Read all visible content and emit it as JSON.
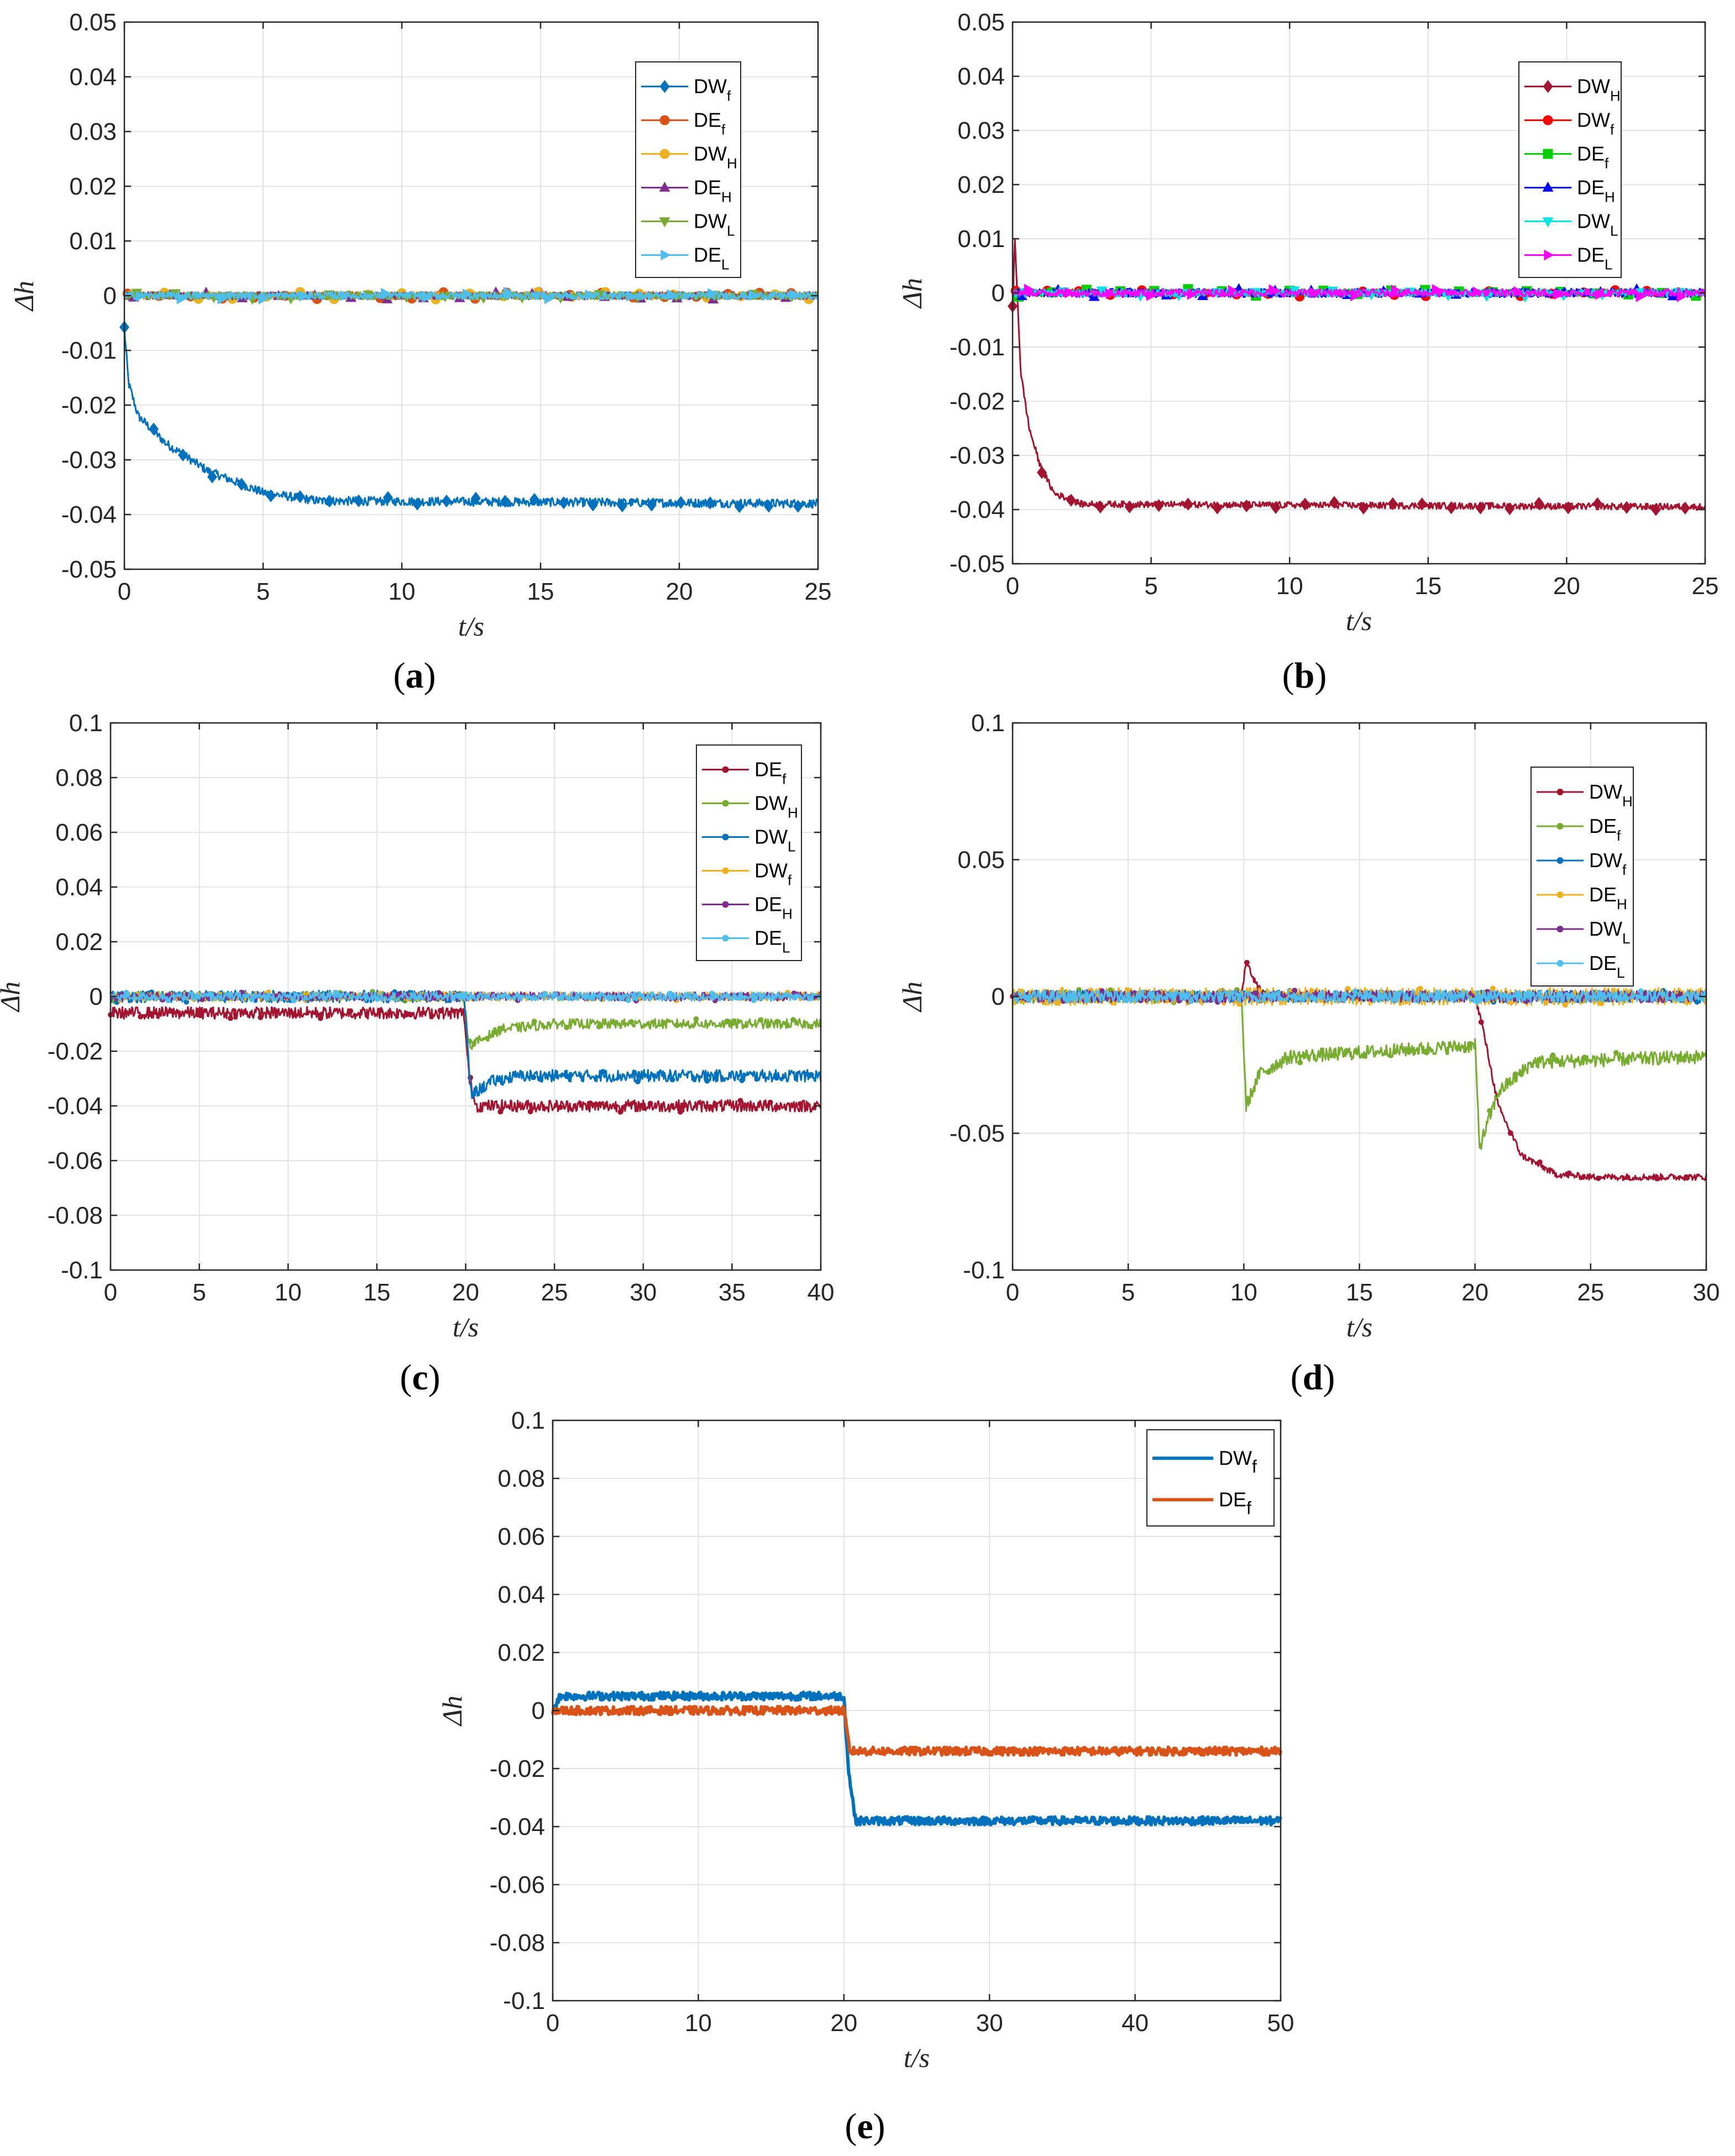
{
  "figure_labels": {
    "a": "a",
    "b": "b",
    "c": "c",
    "d": "d",
    "e": "e"
  },
  "chart_data": [
    {
      "id": "a",
      "type": "line",
      "xlim": [
        0,
        25
      ],
      "ylim": [
        -0.05,
        0.05
      ],
      "xticks": [
        0,
        5,
        10,
        15,
        20,
        25
      ],
      "yticks": [
        -0.05,
        -0.04,
        -0.03,
        -0.02,
        -0.01,
        0,
        0.01,
        0.02,
        0.03,
        0.04,
        0.05
      ],
      "ytick_labels": [
        "-0.05",
        "-0.04",
        "-0.03",
        "-0.02",
        "-0.01",
        "0",
        "0.01",
        "0.02",
        "0.03",
        "0.04",
        "0.05"
      ],
      "xlabel": "t/s",
      "ylabel": "Δh",
      "grid": true,
      "legend_position": "top-right",
      "series": [
        {
          "name": "DW",
          "sub": "f",
          "color": "#0072BD",
          "marker": "diamond",
          "profile": [
            [
              0,
              -0.006
            ],
            [
              0.15,
              -0.016
            ],
            [
              0.5,
              -0.022
            ],
            [
              1.5,
              -0.027
            ],
            [
              3,
              -0.032
            ],
            [
              5,
              -0.036
            ],
            [
              7,
              -0.0375
            ],
            [
              25,
              -0.038
            ]
          ],
          "noise": 0.0008
        },
        {
          "name": "DE",
          "sub": "f",
          "color": "#D95319",
          "marker": "circle",
          "profile": [
            [
              0,
              0
            ],
            [
              25,
              0
            ]
          ],
          "noise": 0.0007
        },
        {
          "name": "DW",
          "sub": "H",
          "color": "#EDB120",
          "marker": "circle",
          "profile": [
            [
              0,
              0
            ],
            [
              25,
              0
            ]
          ],
          "noise": 0.0007
        },
        {
          "name": "DE",
          "sub": "H",
          "color": "#7E2F8E",
          "marker": "triangle-up",
          "profile": [
            [
              0,
              0
            ],
            [
              25,
              0
            ]
          ],
          "noise": 0.0007
        },
        {
          "name": "DW",
          "sub": "L",
          "color": "#77AC30",
          "marker": "triangle-down",
          "profile": [
            [
              0,
              0
            ],
            [
              25,
              0
            ]
          ],
          "noise": 0.0007
        },
        {
          "name": "DE",
          "sub": "L",
          "color": "#4DBEEE",
          "marker": "triangle-right",
          "profile": [
            [
              0,
              0
            ],
            [
              25,
              0
            ]
          ],
          "noise": 0.0007
        }
      ]
    },
    {
      "id": "b",
      "type": "line",
      "xlim": [
        0,
        25
      ],
      "ylim": [
        -0.05,
        0.05
      ],
      "xticks": [
        0,
        5,
        10,
        15,
        20,
        25
      ],
      "yticks": [
        -0.05,
        -0.04,
        -0.03,
        -0.02,
        -0.01,
        0,
        0.01,
        0.02,
        0.03,
        0.04,
        0.05
      ],
      "ytick_labels": [
        "-0.05",
        "-0.04",
        "-0.03",
        "-0.02",
        "-0.01",
        "0",
        "0.01",
        "0.02",
        "0.03",
        "0.04",
        "0.05"
      ],
      "xlabel": "t/s",
      "ylabel": "Δh",
      "grid": true,
      "legend_position": "top-right",
      "series": [
        {
          "name": "DW",
          "sub": "H",
          "color": "#A2142F",
          "marker": "diamond",
          "profile": [
            [
              0,
              -0.003
            ],
            [
              0.08,
              0.01
            ],
            [
              0.3,
              -0.015
            ],
            [
              0.6,
              -0.025
            ],
            [
              1,
              -0.032
            ],
            [
              1.5,
              -0.037
            ],
            [
              2.5,
              -0.039
            ],
            [
              25,
              -0.0395
            ]
          ],
          "noise": 0.0006
        },
        {
          "name": "DW",
          "sub": "f",
          "color": "#FF0000",
          "marker": "circle",
          "profile": [
            [
              0,
              0
            ],
            [
              25,
              0
            ]
          ],
          "noise": 0.0007
        },
        {
          "name": "DE",
          "sub": "f",
          "color": "#00D000",
          "marker": "square",
          "profile": [
            [
              0,
              0
            ],
            [
              25,
              0
            ]
          ],
          "noise": 0.0007
        },
        {
          "name": "DE",
          "sub": "H",
          "color": "#0000FF",
          "marker": "triangle-up",
          "profile": [
            [
              0,
              0
            ],
            [
              25,
              0
            ]
          ],
          "noise": 0.0008
        },
        {
          "name": "DW",
          "sub": "L",
          "color": "#00E5E5",
          "marker": "triangle-down",
          "profile": [
            [
              0,
              0
            ],
            [
              25,
              0
            ]
          ],
          "noise": 0.0007
        },
        {
          "name": "DE",
          "sub": "L",
          "color": "#FF00FF",
          "marker": "triangle-right",
          "profile": [
            [
              0,
              0
            ],
            [
              25,
              0
            ]
          ],
          "noise": 0.0007
        }
      ]
    },
    {
      "id": "c",
      "type": "line",
      "xlim": [
        0,
        40
      ],
      "ylim": [
        -0.1,
        0.1
      ],
      "xticks": [
        0,
        5,
        10,
        15,
        20,
        25,
        30,
        35,
        40
      ],
      "yticks": [
        -0.1,
        -0.08,
        -0.06,
        -0.04,
        -0.02,
        0,
        0.02,
        0.04,
        0.06,
        0.08,
        0.1
      ],
      "ytick_labels": [
        "-0.1",
        "-0.08",
        "-0.06",
        "-0.04",
        "-0.02",
        "0",
        "0.02",
        "0.04",
        "0.06",
        "0.08",
        "0.1"
      ],
      "xlabel": "t/s",
      "ylabel": "Δh",
      "grid": true,
      "legend_position": "top-right",
      "series": [
        {
          "name": "DE",
          "sub": "f",
          "color": "#A2142F",
          "marker": "dot",
          "profile": [
            [
              0,
              -0.006
            ],
            [
              19.9,
              -0.006
            ],
            [
              20.2,
              -0.03
            ],
            [
              20.6,
              -0.04
            ],
            [
              40,
              -0.04
            ]
          ],
          "noise": 0.0022
        },
        {
          "name": "DW",
          "sub": "H",
          "color": "#77AC30",
          "marker": "dot",
          "profile": [
            [
              0,
              0
            ],
            [
              19.9,
              0
            ],
            [
              20.2,
              -0.018
            ],
            [
              22,
              -0.012
            ],
            [
              25,
              -0.01
            ],
            [
              40,
              -0.01
            ]
          ],
          "noise": 0.0018
        },
        {
          "name": "DW",
          "sub": "L",
          "color": "#0072BD",
          "marker": "dot",
          "profile": [
            [
              0,
              0
            ],
            [
              19.9,
              0
            ],
            [
              20.3,
              -0.036
            ],
            [
              21.5,
              -0.031
            ],
            [
              23,
              -0.029
            ],
            [
              40,
              -0.029
            ]
          ],
          "noise": 0.0022
        },
        {
          "name": "DW",
          "sub": "f",
          "color": "#EDB120",
          "marker": "dot",
          "profile": [
            [
              0,
              0
            ],
            [
              40,
              0
            ]
          ],
          "noise": 0.0016
        },
        {
          "name": "DE",
          "sub": "H",
          "color": "#7E2F8E",
          "marker": "dot",
          "profile": [
            [
              0,
              0
            ],
            [
              40,
              0
            ]
          ],
          "noise": 0.0016
        },
        {
          "name": "DE",
          "sub": "L",
          "color": "#4DBEEE",
          "marker": "dot",
          "profile": [
            [
              0,
              0
            ],
            [
              40,
              0
            ]
          ],
          "noise": 0.0016
        }
      ]
    },
    {
      "id": "d",
      "type": "line",
      "xlim": [
        0,
        30
      ],
      "ylim": [
        -0.1,
        0.1
      ],
      "xticks": [
        0,
        5,
        10,
        15,
        20,
        25,
        30
      ],
      "yticks": [
        -0.1,
        -0.05,
        0,
        0.05,
        0.1
      ],
      "ytick_labels": [
        "-0.1",
        "-0.05",
        "0",
        "0.05",
        "0.1"
      ],
      "xlabel": "t/s",
      "ylabel": "Δh",
      "grid": true,
      "legend_position": "top-right",
      "series": [
        {
          "name": "DW",
          "sub": "H",
          "color": "#A2142F",
          "marker": "dot",
          "profile": [
            [
              0,
              0
            ],
            [
              9.9,
              0
            ],
            [
              10.1,
              0.013
            ],
            [
              10.5,
              0.005
            ],
            [
              11,
              0
            ],
            [
              20,
              0
            ],
            [
              20.3,
              -0.01
            ],
            [
              21,
              -0.04
            ],
            [
              22,
              -0.058
            ],
            [
              23.5,
              -0.065
            ],
            [
              25,
              -0.066
            ],
            [
              30,
              -0.066
            ]
          ],
          "noise": 0.0012
        },
        {
          "name": "DE",
          "sub": "f",
          "color": "#77AC30",
          "marker": "dot",
          "profile": [
            [
              0,
              0
            ],
            [
              9.9,
              0
            ],
            [
              10.1,
              -0.04
            ],
            [
              10.7,
              -0.028
            ],
            [
              12,
              -0.022
            ],
            [
              20,
              -0.018
            ],
            [
              20.2,
              -0.055
            ],
            [
              21,
              -0.035
            ],
            [
              22.5,
              -0.024
            ],
            [
              30,
              -0.022
            ]
          ],
          "noise": 0.0025
        },
        {
          "name": "DW",
          "sub": "f",
          "color": "#0072BD",
          "marker": "dot",
          "profile": [
            [
              0,
              0
            ],
            [
              30,
              0
            ]
          ],
          "noise": 0.0022
        },
        {
          "name": "DE",
          "sub": "H",
          "color": "#EDB120",
          "marker": "dot",
          "profile": [
            [
              0,
              0
            ],
            [
              30,
              0
            ]
          ],
          "noise": 0.0032
        },
        {
          "name": "DW",
          "sub": "L",
          "color": "#7E2F8E",
          "marker": "dot",
          "profile": [
            [
              0,
              0
            ],
            [
              30,
              0
            ]
          ],
          "noise": 0.0022
        },
        {
          "name": "DE",
          "sub": "L",
          "color": "#4DBEEE",
          "marker": "dot",
          "profile": [
            [
              0,
              0
            ],
            [
              30,
              0
            ]
          ],
          "noise": 0.0022
        }
      ]
    },
    {
      "id": "e",
      "type": "line",
      "xlim": [
        0,
        50
      ],
      "ylim": [
        -0.1,
        0.1
      ],
      "xticks": [
        0,
        10,
        20,
        30,
        40,
        50
      ],
      "yticks": [
        -0.1,
        -0.08,
        -0.06,
        -0.04,
        -0.02,
        0,
        0.02,
        0.04,
        0.06,
        0.08,
        0.1
      ],
      "ytick_labels": [
        "-0.1",
        "-0.08",
        "-0.06",
        "-0.04",
        "-0.02",
        "0",
        "0.02",
        "0.04",
        "0.06",
        "0.08",
        "0.1"
      ],
      "xlabel": "t/s",
      "ylabel": "Δh",
      "grid": true,
      "legend_position": "top-right",
      "series": [
        {
          "name": "DW",
          "sub": "f",
          "color": "#0072BD",
          "marker": "none",
          "thick": true,
          "profile": [
            [
              0,
              0
            ],
            [
              0.5,
              0.005
            ],
            [
              20,
              0.005
            ],
            [
              20.3,
              -0.02
            ],
            [
              20.8,
              -0.038
            ],
            [
              50,
              -0.038
            ]
          ],
          "noise": 0.0014
        },
        {
          "name": "DE",
          "sub": "f",
          "color": "#D95319",
          "marker": "none",
          "thick": true,
          "profile": [
            [
              0,
              0
            ],
            [
              20,
              0
            ],
            [
              20.4,
              -0.014
            ],
            [
              50,
              -0.014
            ]
          ],
          "noise": 0.0014
        }
      ]
    }
  ]
}
